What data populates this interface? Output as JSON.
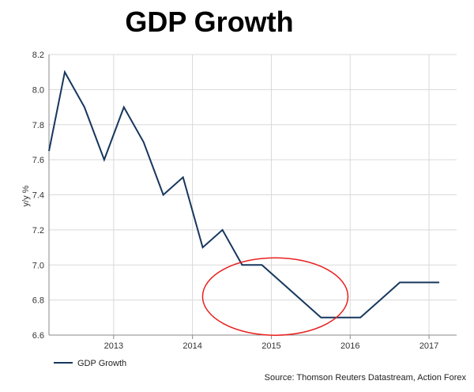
{
  "chart_data": {
    "type": "line",
    "title": "GDP Growth",
    "xlabel": "",
    "ylabel": "y/y %",
    "ylim": [
      6.6,
      8.2
    ],
    "yticks": [
      "6.6",
      "6.8",
      "7.0",
      "7.2",
      "7.4",
      "7.6",
      "7.8",
      "8.0",
      "8.2"
    ],
    "xlim": [
      2012.18,
      2017.35
    ],
    "xticks": [
      {
        "label": "2013",
        "value": 2013.0
      },
      {
        "label": "2014",
        "value": 2014.0
      },
      {
        "label": "2015",
        "value": 2015.0
      },
      {
        "label": "2016",
        "value": 2016.0
      },
      {
        "label": "2017",
        "value": 2017.0
      }
    ],
    "series": [
      {
        "name": "GDP Growth",
        "color": "#17375e",
        "x": [
          2012.18,
          2012.38,
          2012.63,
          2012.88,
          2013.13,
          2013.38,
          2013.63,
          2013.88,
          2014.13,
          2014.38,
          2014.63,
          2014.88,
          2015.13,
          2015.38,
          2015.63,
          2015.88,
          2016.13,
          2016.38,
          2016.63,
          2016.88,
          2017.13
        ],
        "y": [
          7.65,
          8.1,
          7.9,
          7.6,
          7.9,
          7.7,
          7.4,
          7.5,
          7.1,
          7.2,
          7.0,
          7.0,
          6.9,
          6.8,
          6.7,
          6.7,
          6.7,
          6.8,
          6.9,
          6.9,
          6.9
        ]
      }
    ],
    "grid": true,
    "legend": "bottom-left",
    "annotation": {
      "type": "ellipse",
      "color": "#e8201e",
      "around": "2015-2016 lows"
    },
    "source": "Source: Thomson Reuters Datastream, Action Forex"
  }
}
